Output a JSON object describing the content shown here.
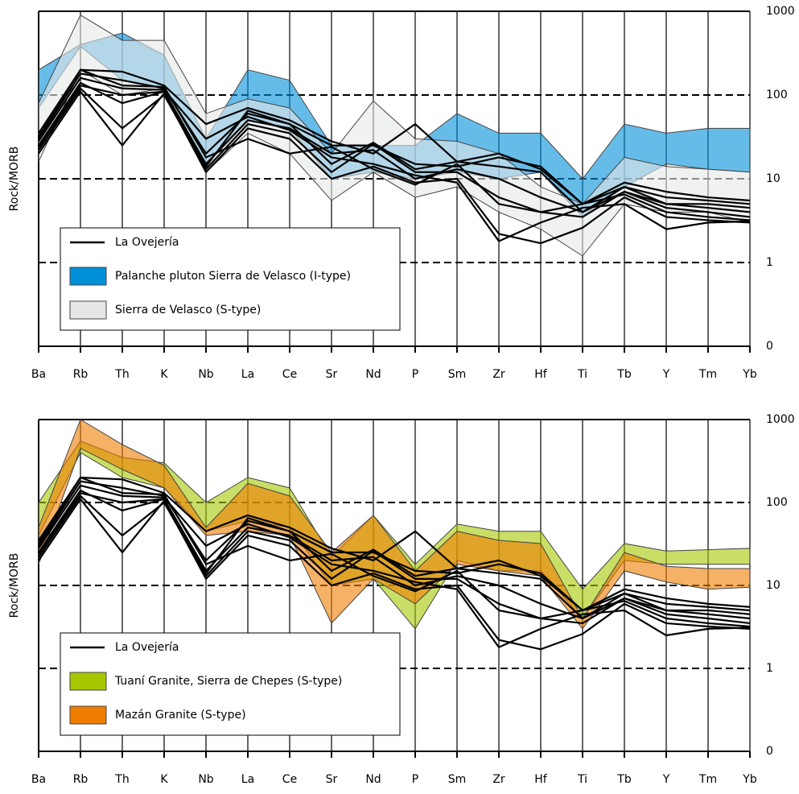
{
  "chart_data": [
    {
      "type": "line",
      "yscale": "log",
      "ylabel": "Rock/MORB",
      "legend": "bottom-left",
      "grid": true,
      "categories": [
        "Ba",
        "Rb",
        "Th",
        "K",
        "Nb",
        "La",
        "Ce",
        "Sr",
        "Nd",
        "P",
        "Sm",
        "Zr",
        "Hf",
        "Ti",
        "Tb",
        "Y",
        "Tm",
        "Yb"
      ],
      "ylim": [
        0.1,
        1000
      ],
      "yticks": [
        {
          "value": 0.1,
          "label": "0"
        },
        1,
        10,
        100,
        1000
      ],
      "series": [
        {
          "name": "La Ovejería",
          "kind": "lines",
          "color": "#000000",
          "values": [
            [
              35,
              200,
              190,
              130,
              45,
              70,
              50,
              28,
              20,
              45,
              16,
              20,
              13,
              5,
              9,
              7,
              6,
              5.5
            ],
            [
              30,
              180,
              150,
              120,
              20,
              60,
              45,
              25,
              25,
              15,
              14,
              18,
              14,
              5,
              8,
              6,
              5.5,
              5
            ],
            [
              25,
              140,
              80,
              110,
              15,
              50,
              40,
              20,
              22,
              10,
              13,
              10,
              6,
              4,
              7,
              5,
              4.5,
              4
            ],
            [
              22,
              120,
              40,
              100,
              13,
              45,
              35,
              12,
              26,
              12,
              12,
              6,
              4,
              3.5,
              7,
              4.5,
              4,
              3.5
            ],
            [
              20,
              110,
              25,
              105,
              12,
              40,
              30,
              10,
              14,
              9,
              10,
              2.2,
              1.7,
              2.6,
              6,
              3.5,
              3.2,
              3
            ],
            [
              28,
              160,
              120,
              115,
              30,
              55,
              38,
              18,
              15,
              11,
              9,
              1.8,
              3,
              4.5,
              5,
              2.5,
              3,
              3.1
            ],
            [
              32,
              200,
              130,
              125,
              18,
              30,
              20,
              24,
              13,
              8.5,
              15,
              5,
              4,
              5,
              6.5,
              4,
              3.5,
              3.2
            ],
            [
              24,
              130,
              100,
              110,
              14,
              65,
              45,
              15,
              27,
              13,
              16,
              14,
              12,
              4,
              8,
              5,
              5,
              4.5
            ]
          ]
        },
        {
          "name": "Palanche pluton Sierra de Velasco (I-type)",
          "kind": "band",
          "color": "#0090d8",
          "upper": [
            200,
            400,
            550,
            300,
            30,
            200,
            150,
            25,
            25,
            25,
            60,
            35,
            35,
            10,
            45,
            35,
            40,
            40
          ],
          "lower": [
            70,
            380,
            150,
            120,
            15,
            50,
            40,
            10,
            12,
            10,
            12,
            10,
            12,
            3.5,
            8,
            15,
            13,
            12
          ]
        },
        {
          "name": "Sierra de Velasco (S-type)",
          "kind": "band",
          "color": "#e6e8e8",
          "upper": [
            80,
            900,
            450,
            450,
            60,
            90,
            70,
            20,
            85,
            30,
            28,
            20,
            8,
            5,
            18,
            14,
            13,
            12
          ],
          "lower": [
            16,
            200,
            100,
            120,
            12,
            35,
            20,
            5.5,
            12,
            6,
            8,
            4,
            2.5,
            1.2,
            5,
            4,
            4,
            3
          ]
        }
      ]
    },
    {
      "type": "line",
      "yscale": "log",
      "ylabel": "Rock/MORB",
      "legend": "bottom-left",
      "grid": true,
      "categories": [
        "Ba",
        "Rb",
        "Th",
        "K",
        "Nb",
        "La",
        "Ce",
        "Sr",
        "Nd",
        "P",
        "Sm",
        "Zr",
        "Hf",
        "Ti",
        "Tb",
        "Y",
        "Tm",
        "Yb"
      ],
      "ylim": [
        0.1,
        1000
      ],
      "yticks": [
        {
          "value": 0.1,
          "label": "0"
        },
        1,
        10,
        100,
        1000
      ],
      "series": [
        {
          "name": "La Ovejería",
          "kind": "lines",
          "color": "#000000",
          "values": [
            [
              35,
              200,
              190,
              130,
              45,
              70,
              50,
              28,
              20,
              45,
              16,
              20,
              13,
              5,
              9,
              7,
              6,
              5.5
            ],
            [
              30,
              180,
              150,
              120,
              20,
              60,
              45,
              25,
              25,
              15,
              14,
              18,
              14,
              5,
              8,
              6,
              5.5,
              5
            ],
            [
              25,
              140,
              80,
              110,
              15,
              50,
              40,
              20,
              22,
              10,
              13,
              10,
              6,
              4,
              7,
              5,
              4.5,
              4
            ],
            [
              22,
              120,
              40,
              100,
              13,
              45,
              35,
              12,
              26,
              12,
              12,
              6,
              4,
              3.5,
              7,
              4.5,
              4,
              3.5
            ],
            [
              20,
              110,
              25,
              105,
              12,
              40,
              30,
              10,
              14,
              9,
              10,
              2.2,
              1.7,
              2.6,
              6,
              3.5,
              3.2,
              3
            ],
            [
              28,
              160,
              120,
              115,
              30,
              55,
              38,
              18,
              15,
              11,
              9,
              1.8,
              3,
              4.5,
              5,
              2.5,
              3,
              3.1
            ],
            [
              32,
              200,
              130,
              125,
              18,
              30,
              20,
              24,
              13,
              8.5,
              15,
              5,
              4,
              5,
              6.5,
              4,
              3.5,
              3.2
            ],
            [
              24,
              130,
              100,
              110,
              14,
              65,
              45,
              15,
              27,
              13,
              16,
              14,
              12,
              4,
              8,
              5,
              5,
              4.5
            ]
          ]
        },
        {
          "name": "Tuaní Granite, Sierra de Chepes (S-type)",
          "kind": "band",
          "color": "#a5c800",
          "upper": [
            100,
            550,
            350,
            300,
            100,
            200,
            150,
            22,
            70,
            18,
            55,
            45,
            45,
            9,
            32,
            26,
            27,
            28
          ],
          "lower": [
            40,
            400,
            200,
            150,
            45,
            60,
            50,
            10,
            12,
            3,
            20,
            15,
            15,
            4,
            20,
            18,
            18,
            18
          ]
        },
        {
          "name": "Mazán Granite (S-type)",
          "kind": "band",
          "color": "#ee7d00",
          "upper": [
            50,
            1000,
            500,
            280,
            50,
            170,
            120,
            25,
            70,
            15,
            45,
            35,
            32,
            4,
            25,
            17,
            16,
            16
          ],
          "lower": [
            18,
            450,
            250,
            150,
            40,
            45,
            40,
            3.5,
            12,
            6,
            18,
            15,
            13,
            3,
            15,
            11,
            9,
            9.5
          ]
        }
      ]
    }
  ]
}
